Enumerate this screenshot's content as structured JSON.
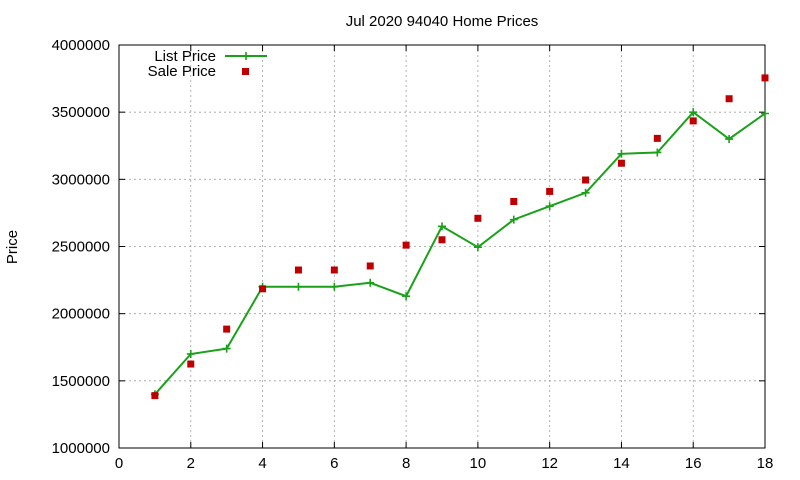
{
  "chart_data": {
    "type": "line",
    "title": "Jul 2020 94040 Home Prices",
    "xlabel": "",
    "ylabel": "Price",
    "xlim": [
      0,
      18
    ],
    "ylim": [
      1000000,
      4000000
    ],
    "xticks": [
      0,
      2,
      4,
      6,
      8,
      10,
      12,
      14,
      16,
      18
    ],
    "yticks": [
      1000000,
      1500000,
      2000000,
      2500000,
      3000000,
      3500000,
      4000000
    ],
    "grid": true,
    "legend": "top-left",
    "series": [
      {
        "name": "List Price",
        "kind": "line-with-plus-markers",
        "color": "#1aa11a",
        "x": [
          1,
          2,
          3,
          4,
          5,
          6,
          7,
          8,
          9,
          10,
          11,
          12,
          13,
          14,
          15,
          16,
          17,
          18
        ],
        "y": [
          1400000,
          1700000,
          1740000,
          2200000,
          2200000,
          2200000,
          2230000,
          2130000,
          2650000,
          2495000,
          2700000,
          2800000,
          2900000,
          3190000,
          3200000,
          3500000,
          3300000,
          3490000
        ]
      },
      {
        "name": "Sale Price",
        "kind": "square-markers",
        "color": "#c00000",
        "x": [
          1,
          2,
          3,
          4,
          5,
          6,
          7,
          8,
          9,
          10,
          11,
          12,
          13,
          14,
          15,
          16,
          17,
          18
        ],
        "y": [
          1390000,
          1625000,
          1885000,
          2185000,
          2325000,
          2325000,
          2355000,
          2510000,
          2550000,
          2710000,
          2835000,
          2910000,
          2995000,
          3120000,
          3305000,
          3435000,
          3600000,
          3755000
        ]
      }
    ]
  }
}
